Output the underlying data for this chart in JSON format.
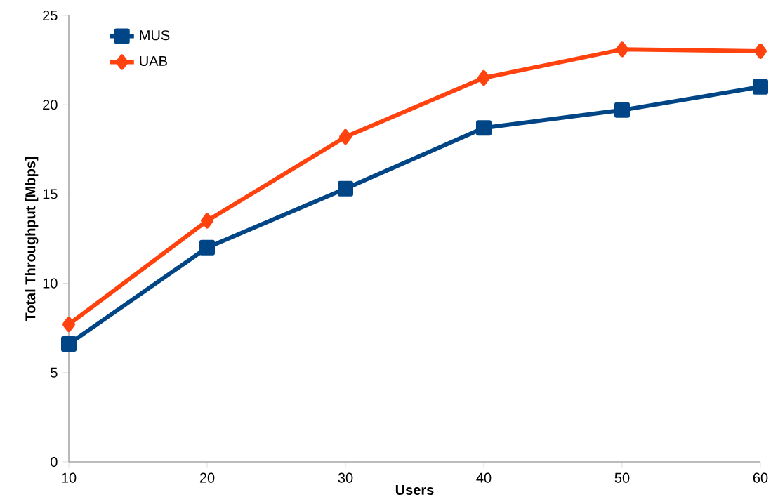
{
  "chart_data": {
    "type": "line",
    "xlabel": "Users",
    "ylabel": "Total Throughput [Mbps]",
    "x": [
      10,
      20,
      30,
      40,
      50,
      60
    ],
    "series": [
      {
        "name": "MUS",
        "color": "#004586",
        "marker": "square",
        "values": [
          6.6,
          12.0,
          15.3,
          18.7,
          19.7,
          21.0
        ]
      },
      {
        "name": "UAB",
        "color": "#ff420e",
        "marker": "diamond",
        "values": [
          7.7,
          13.5,
          18.2,
          21.5,
          23.1,
          23.0
        ]
      }
    ],
    "xlim": [
      10,
      60
    ],
    "xticks": [
      10,
      20,
      30,
      40,
      50,
      60
    ],
    "ylim": [
      0,
      25
    ],
    "yticks": [
      0,
      5,
      10,
      15,
      20,
      25
    ],
    "legend": "top left",
    "line_style": "solid"
  }
}
